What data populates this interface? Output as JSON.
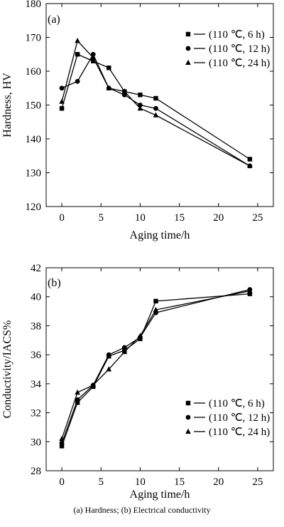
{
  "caption": "(a) Hardness; (b) Electrical conductivity",
  "chart_data": [
    {
      "type": "line",
      "panel_label": "(a)",
      "xlabel": "Aging time/h",
      "ylabel": "Hardness, HV",
      "xlim": [
        -2,
        27
      ],
      "ylim": [
        120,
        180
      ],
      "x_ticks": [
        0,
        5,
        10,
        15,
        20,
        25
      ],
      "y_ticks": [
        120,
        130,
        140,
        150,
        160,
        170,
        180
      ],
      "grid": false,
      "legend_position": "top-right",
      "series": [
        {
          "name": "(110 ℃, 6 h)",
          "marker": "square",
          "x": [
            0,
            2,
            4,
            6,
            8,
            10,
            12,
            24
          ],
          "y": [
            149,
            165,
            163,
            161,
            154,
            153,
            152,
            134
          ]
        },
        {
          "name": "(110 ℃, 12 h)",
          "marker": "circle",
          "x": [
            0,
            2,
            4,
            6,
            8,
            10,
            12,
            24
          ],
          "y": [
            155,
            157,
            165,
            155,
            153,
            150,
            149,
            132
          ]
        },
        {
          "name": "(110 ℃, 24 h)",
          "marker": "triangle",
          "x": [
            0,
            2,
            4,
            6,
            8,
            10,
            12,
            24
          ],
          "y": [
            151,
            169,
            164,
            155,
            154,
            149,
            147,
            132
          ]
        }
      ]
    },
    {
      "type": "line",
      "panel_label": "(b)",
      "xlabel": "Aging time/h",
      "ylabel": "Conductivity/IACS%",
      "xlim": [
        -2,
        27
      ],
      "ylim": [
        28,
        42
      ],
      "x_ticks": [
        0,
        5,
        10,
        15,
        20,
        25
      ],
      "y_ticks": [
        28,
        30,
        32,
        34,
        36,
        38,
        40,
        42
      ],
      "grid": false,
      "legend_position": "bottom-right",
      "series": [
        {
          "name": "(110 ℃, 6 h)",
          "marker": "square",
          "x": [
            0,
            2,
            4,
            6,
            8,
            10,
            12,
            24
          ],
          "y": [
            29.7,
            32.7,
            33.8,
            35.9,
            36.3,
            37.1,
            39.7,
            40.2
          ]
        },
        {
          "name": "(110 ℃, 12 h)",
          "marker": "circle",
          "x": [
            0,
            2,
            4,
            6,
            8,
            10,
            12,
            24
          ],
          "y": [
            29.9,
            32.9,
            33.9,
            36.0,
            36.5,
            37.2,
            38.9,
            40.5
          ]
        },
        {
          "name": "(110 ℃, 24 h)",
          "marker": "triangle",
          "x": [
            0,
            2,
            4,
            6,
            8,
            10,
            12,
            24
          ],
          "y": [
            30.2,
            33.4,
            33.9,
            35.0,
            36.2,
            37.3,
            39.1,
            40.4
          ]
        }
      ]
    }
  ]
}
